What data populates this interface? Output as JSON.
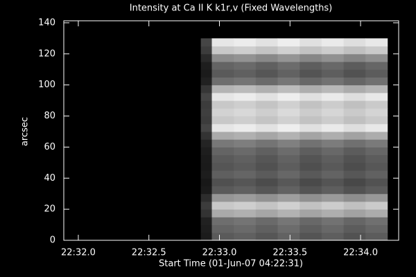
{
  "chart_data": {
    "type": "heatmap",
    "title": "Intensity at Ca II K k1r,v (Fixed Wavelengths)",
    "x_label": "Start Time (01-Jun-07 04:22:31)",
    "y_label": "arcsec",
    "xlim": [
      31.897,
      34.27
    ],
    "ylim": [
      0,
      141.3
    ],
    "xticks": [
      {
        "value": 32.0,
        "label": "22:32.0"
      },
      {
        "value": 32.5,
        "label": "22:32.5"
      },
      {
        "value": 33.0,
        "label": "22:33.0"
      },
      {
        "value": 33.5,
        "label": "22:33.5"
      },
      {
        "value": 34.0,
        "label": "22:34.0"
      }
    ],
    "yticks": [
      0,
      20,
      40,
      60,
      80,
      100,
      120,
      140
    ],
    "colormap": "gray",
    "zlim": [
      0,
      255
    ],
    "x_edges": [
      32.868,
      32.946,
      33.102,
      33.257,
      33.413,
      33.569,
      33.724,
      33.88,
      34.035,
      34.19
    ],
    "y_edges": [
      0,
      5,
      10,
      15,
      20,
      25,
      30,
      35,
      40,
      45,
      50,
      55,
      60,
      65,
      70,
      75,
      80,
      85,
      90,
      95,
      100,
      105,
      110,
      115,
      120,
      125,
      130
    ],
    "z": [
      [
        27,
        90,
        96,
        86,
        98,
        84,
        94,
        82,
        92
      ],
      [
        30,
        100,
        106,
        96,
        108,
        94,
        104,
        92,
        102
      ],
      [
        33,
        110,
        116,
        106,
        118,
        104,
        114,
        102,
        112
      ],
      [
        51,
        170,
        176,
        166,
        178,
        164,
        174,
        162,
        172
      ],
      [
        60,
        200,
        206,
        196,
        208,
        194,
        204,
        192,
        202
      ],
      [
        45,
        150,
        156,
        146,
        158,
        144,
        154,
        142,
        152
      ],
      [
        27,
        90,
        96,
        86,
        98,
        84,
        94,
        82,
        92
      ],
      [
        24,
        80,
        86,
        76,
        88,
        74,
        84,
        72,
        82
      ],
      [
        29,
        95,
        101,
        91,
        103,
        89,
        99,
        87,
        97
      ],
      [
        26,
        85,
        91,
        81,
        93,
        79,
        89,
        77,
        87
      ],
      [
        27,
        90,
        96,
        86,
        98,
        84,
        94,
        82,
        92
      ],
      [
        30,
        100,
        106,
        96,
        108,
        94,
        104,
        92,
        102
      ],
      [
        36,
        120,
        126,
        116,
        128,
        114,
        124,
        112,
        122
      ],
      [
        51,
        170,
        176,
        166,
        178,
        164,
        174,
        162,
        172
      ],
      [
        69,
        230,
        236,
        226,
        238,
        224,
        234,
        222,
        232
      ],
      [
        60,
        200,
        206,
        196,
        208,
        194,
        204,
        192,
        202
      ],
      [
        63,
        210,
        216,
        206,
        218,
        204,
        214,
        202,
        212
      ],
      [
        60,
        200,
        206,
        196,
        208,
        194,
        204,
        192,
        202
      ],
      [
        69,
        230,
        236,
        226,
        238,
        224,
        234,
        222,
        232
      ],
      [
        54,
        180,
        186,
        176,
        188,
        174,
        184,
        172,
        182
      ],
      [
        33,
        110,
        116,
        106,
        118,
        104,
        114,
        102,
        112
      ],
      [
        27,
        90,
        96,
        86,
        98,
        84,
        94,
        82,
        92
      ],
      [
        30,
        100,
        106,
        96,
        108,
        94,
        104,
        92,
        102
      ],
      [
        42,
        140,
        146,
        136,
        148,
        134,
        144,
        132,
        142
      ],
      [
        60,
        200,
        206,
        196,
        208,
        194,
        204,
        192,
        202
      ],
      [
        69,
        230,
        236,
        226,
        238,
        224,
        234,
        222,
        232
      ]
    ]
  }
}
